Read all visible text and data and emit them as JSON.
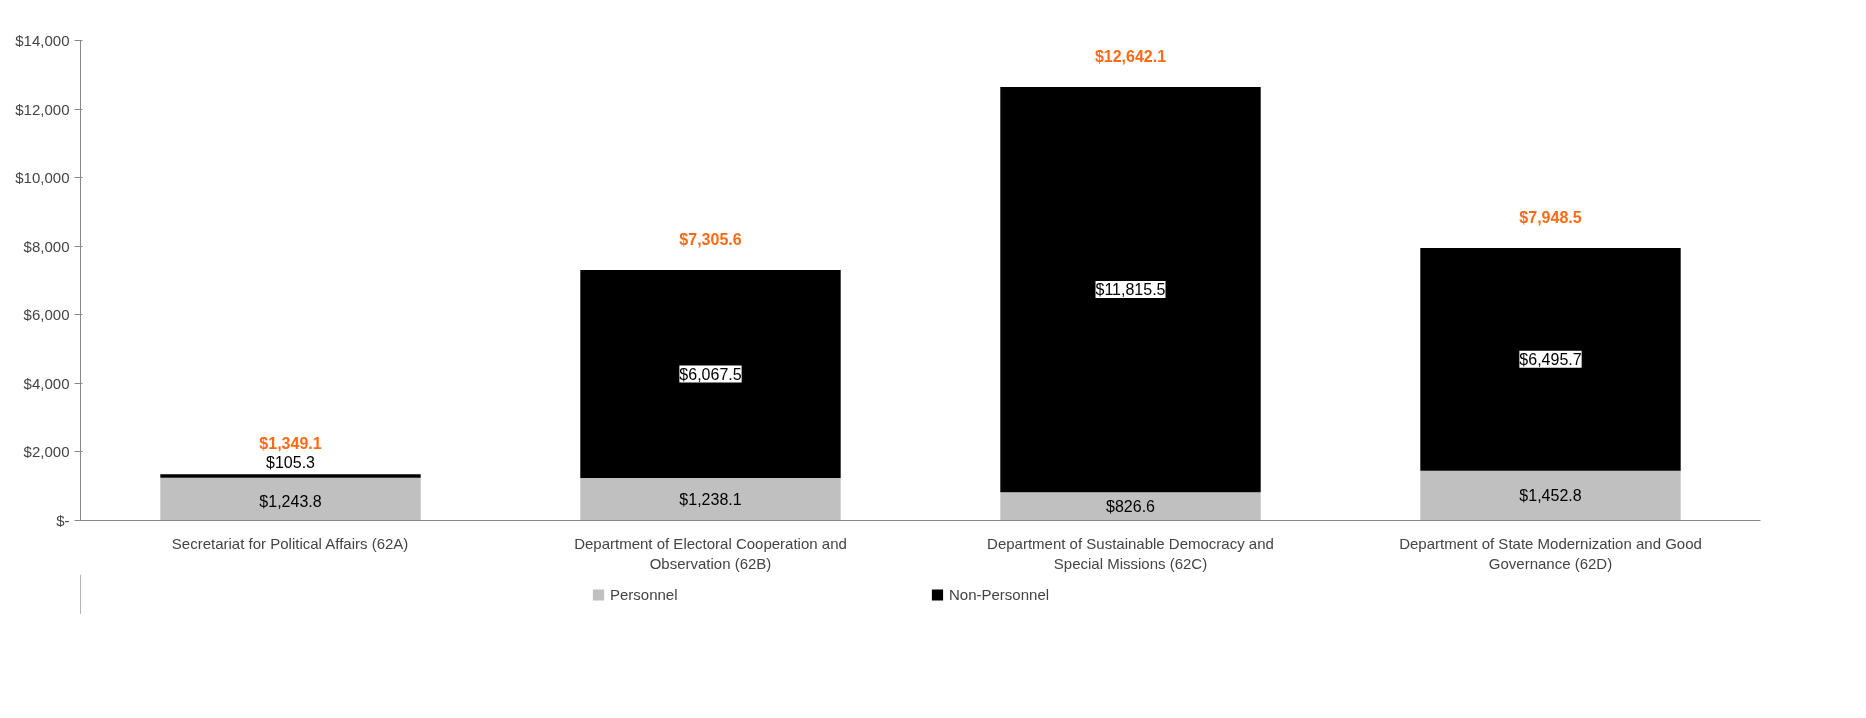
{
  "chart_data": {
    "type": "bar",
    "stacked": true,
    "categories": [
      "Secretariat for Political Affairs (62A)",
      "Department of Electoral Cooperation and Observation (62B)",
      "Department of Sustainable Democracy and Special Missions (62C)",
      "Department of State Modernization and Good Governance (62D)"
    ],
    "series": [
      {
        "name": "Personnel",
        "color": "#c0c0c0",
        "values": [
          1243.8,
          1238.1,
          826.6,
          1452.8
        ],
        "value_labels": [
          "$1,243.8",
          "$1,238.1",
          "$826.6",
          "$1,452.8"
        ]
      },
      {
        "name": "Non-Personnel",
        "color": "#000000",
        "values": [
          105.3,
          6067.5,
          11815.5,
          6495.7
        ],
        "value_labels": [
          "$105.3",
          "$6,067.5",
          "$11,815.5",
          "$6,495.7"
        ]
      }
    ],
    "totals": [
      "$1,349.1",
      "$7,305.6",
      "$12,642.1",
      "$7,948.5"
    ],
    "ylim": [
      0,
      14000
    ],
    "yticks": [
      {
        "value": 0,
        "label": "$-"
      },
      {
        "value": 2000,
        "label": "$2,000"
      },
      {
        "value": 4000,
        "label": "$4,000"
      },
      {
        "value": 6000,
        "label": "$6,000"
      },
      {
        "value": 8000,
        "label": "$8,000"
      },
      {
        "value": 10000,
        "label": "$10,000"
      },
      {
        "value": 12000,
        "label": "$12,000"
      },
      {
        "value": 14000,
        "label": "$14,000"
      }
    ],
    "grid": false,
    "legend": "bottom"
  }
}
